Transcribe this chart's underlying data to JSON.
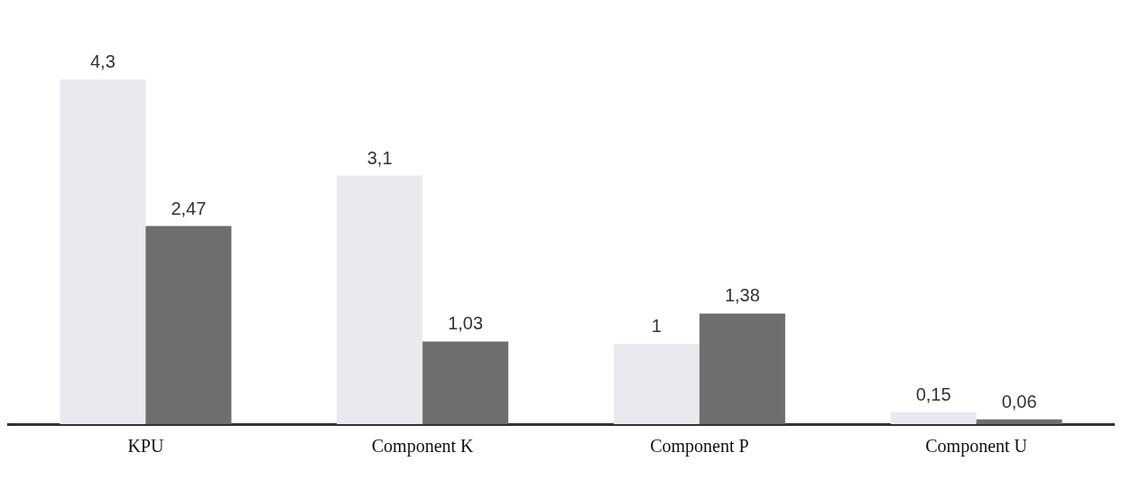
{
  "chart_data": {
    "type": "bar",
    "categories": [
      "KPU",
      "Component K",
      "Component P",
      "Component U"
    ],
    "series": [
      {
        "color": "#e9e9ef",
        "values": [
          4.3,
          3.1,
          1,
          0.15
        ],
        "value_labels": [
          "4,3",
          "3,1",
          "1",
          "0,15"
        ]
      },
      {
        "color": "#6e6e6e",
        "values": [
          2.47,
          1.03,
          1.38,
          0.06
        ],
        "value_labels": [
          "2,47",
          "1,03",
          "1,38",
          "0,06"
        ]
      }
    ],
    "grid": false
  }
}
